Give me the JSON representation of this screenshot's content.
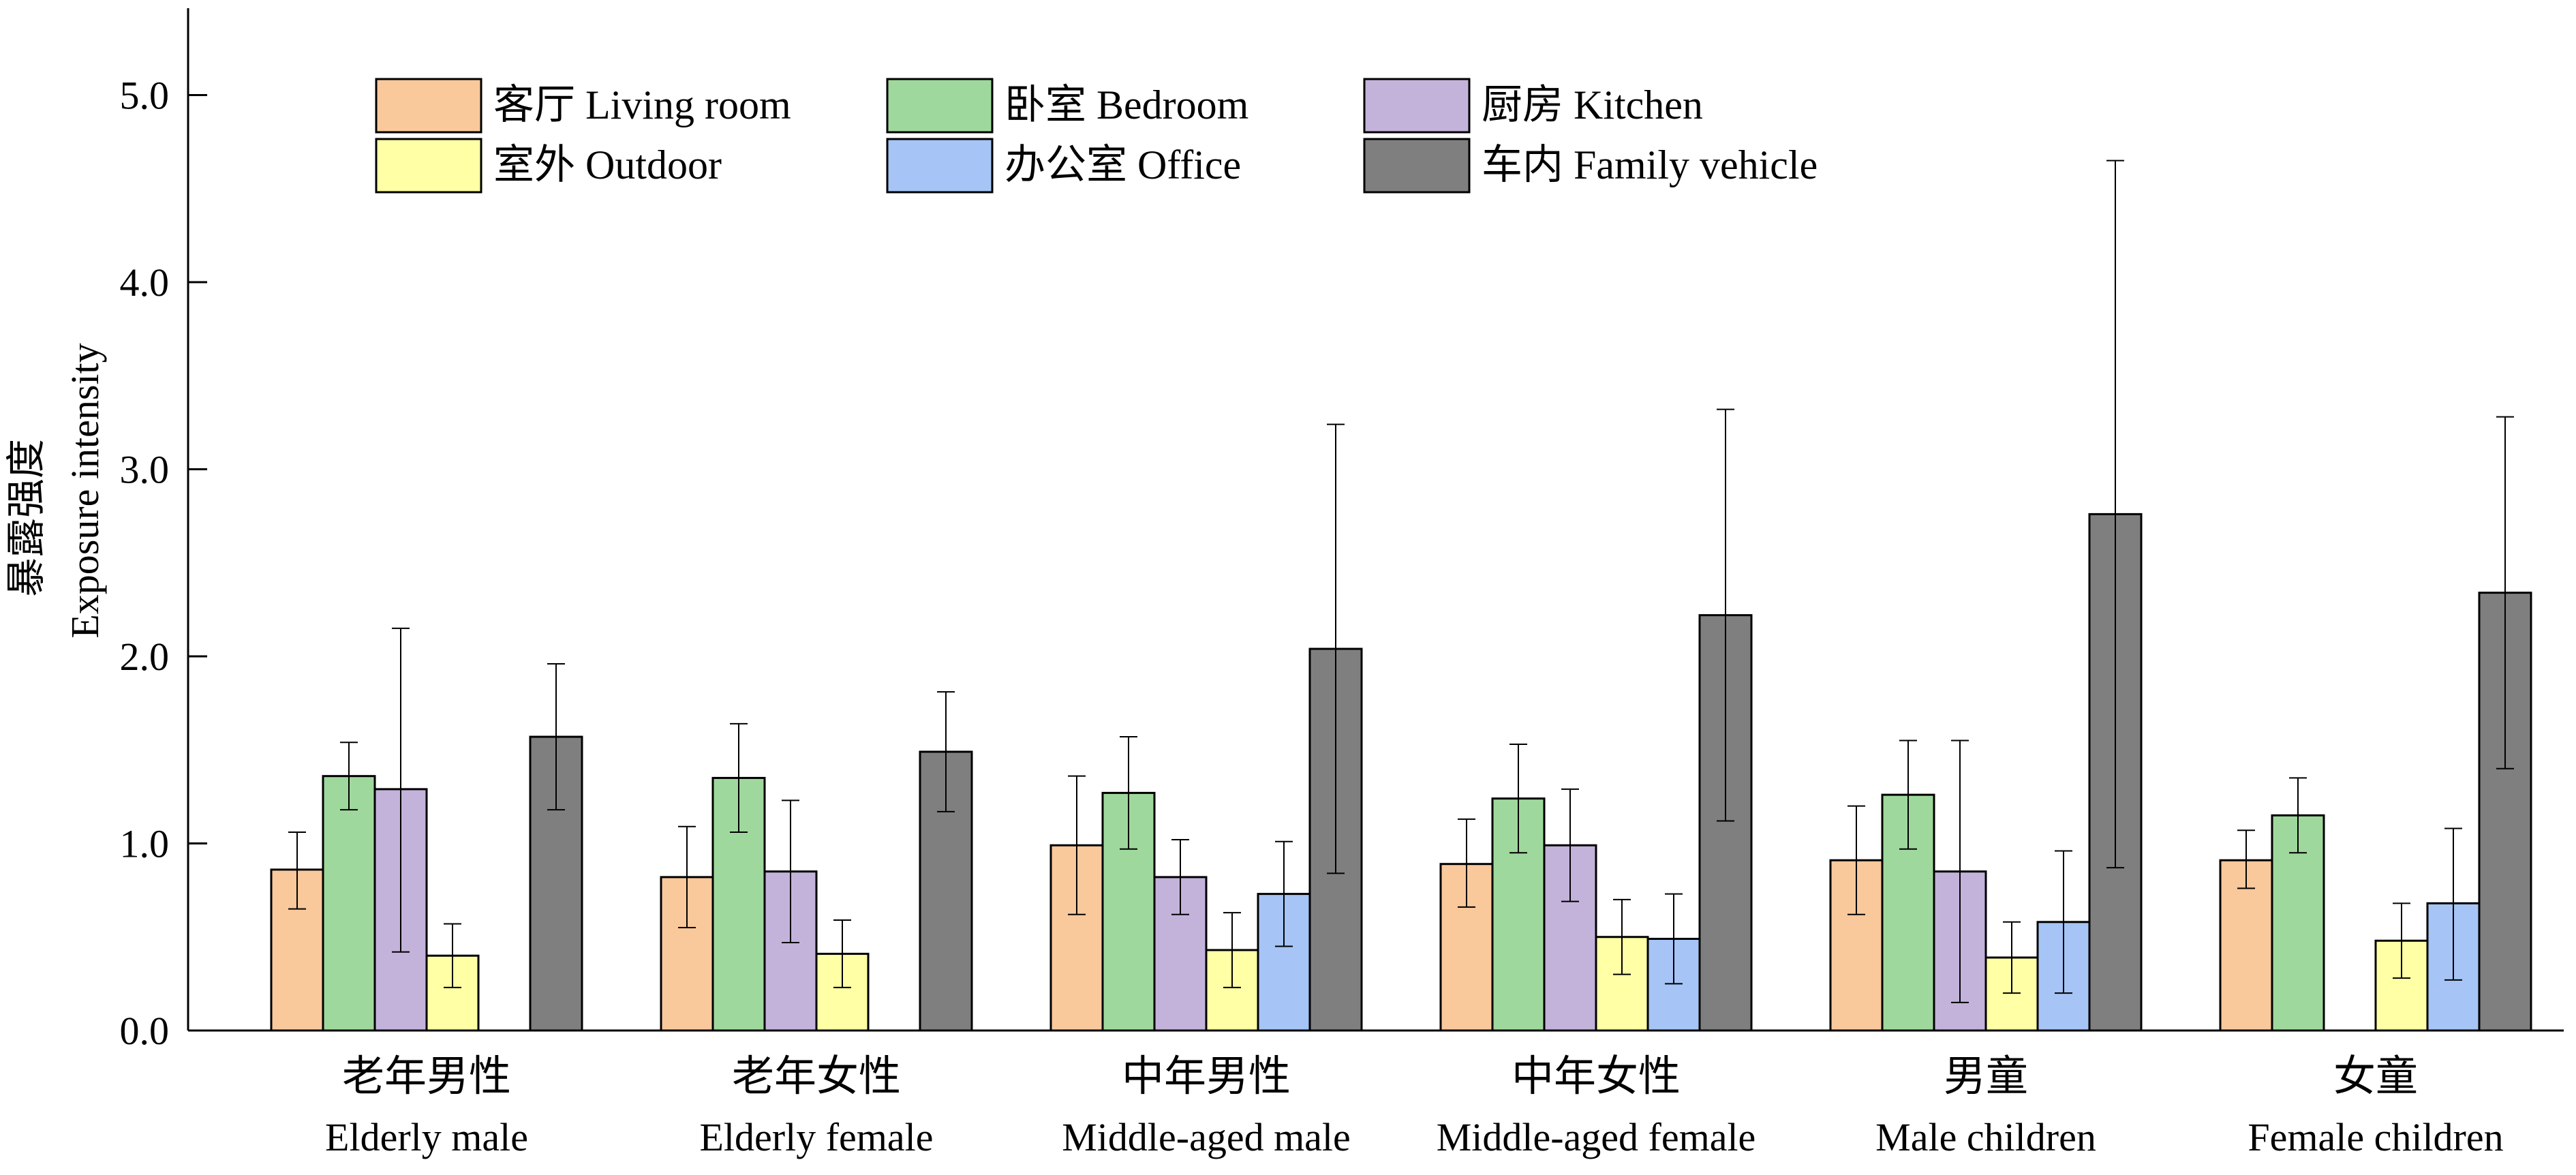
{
  "chart_data": {
    "type": "bar",
    "ylabel_cn": "暴露强度",
    "ylabel_en": "Exposure intensity",
    "ylim": [
      0,
      5.5
    ],
    "yticks": [
      "0.0",
      "1.0",
      "2.0",
      "3.0",
      "4.0",
      "5.0"
    ],
    "ytick_values": [
      0,
      1,
      2,
      3,
      4,
      5
    ],
    "grid": false,
    "legend_position": "top-left",
    "categories": [
      {
        "cn": "老年男性",
        "en": "Elderly male"
      },
      {
        "cn": "老年女性",
        "en": "Elderly female"
      },
      {
        "cn": "中年男性",
        "en": "Middle-aged male"
      },
      {
        "cn": "中年女性",
        "en": "Middle-aged female"
      },
      {
        "cn": "男童",
        "en": "Male children"
      },
      {
        "cn": "女童",
        "en": "Female children"
      }
    ],
    "series": [
      {
        "name": "客厅 Living room",
        "color": "#F9C89B",
        "values": [
          0.86,
          0.82,
          0.99,
          0.89,
          0.91,
          0.91
        ],
        "err_low": [
          0.65,
          0.55,
          0.62,
          0.66,
          0.62,
          0.76
        ],
        "err_high": [
          1.06,
          1.09,
          1.36,
          1.13,
          1.2,
          1.07
        ]
      },
      {
        "name": "卧室 Bedroom",
        "color": "#9FD89C",
        "values": [
          1.36,
          1.35,
          1.27,
          1.24,
          1.26,
          1.15
        ],
        "err_low": [
          1.18,
          1.06,
          0.97,
          0.95,
          0.97,
          0.95
        ],
        "err_high": [
          1.54,
          1.64,
          1.57,
          1.53,
          1.55,
          1.35
        ]
      },
      {
        "name": "厨房 Kitchen",
        "color": "#C3B3DB",
        "values": [
          1.29,
          0.85,
          0.82,
          0.99,
          0.85,
          null
        ],
        "err_low": [
          0.42,
          0.47,
          0.62,
          0.69,
          0.15,
          null
        ],
        "err_high": [
          2.15,
          1.23,
          1.02,
          1.29,
          1.55,
          null
        ]
      },
      {
        "name": "室外 Outdoor",
        "color": "#FFFFA6",
        "values": [
          0.4,
          0.41,
          0.43,
          0.5,
          0.39,
          0.48
        ],
        "err_low": [
          0.23,
          0.23,
          0.23,
          0.3,
          0.2,
          0.28
        ],
        "err_high": [
          0.57,
          0.59,
          0.63,
          0.7,
          0.58,
          0.68
        ]
      },
      {
        "name": "办公室 Office",
        "color": "#A6C4F5",
        "values": [
          null,
          null,
          0.73,
          0.49,
          0.58,
          0.68
        ],
        "err_low": [
          null,
          null,
          0.45,
          0.25,
          0.2,
          0.27
        ],
        "err_high": [
          null,
          null,
          1.01,
          0.73,
          0.96,
          1.08
        ]
      },
      {
        "name": "车内 Family vehicle",
        "color": "#7F7F7F",
        "values": [
          1.57,
          1.49,
          2.04,
          2.22,
          2.76,
          2.34
        ],
        "err_low": [
          1.18,
          1.17,
          0.84,
          1.12,
          0.87,
          1.4
        ],
        "err_high": [
          1.96,
          1.81,
          3.24,
          3.32,
          4.65,
          3.28
        ]
      }
    ]
  }
}
